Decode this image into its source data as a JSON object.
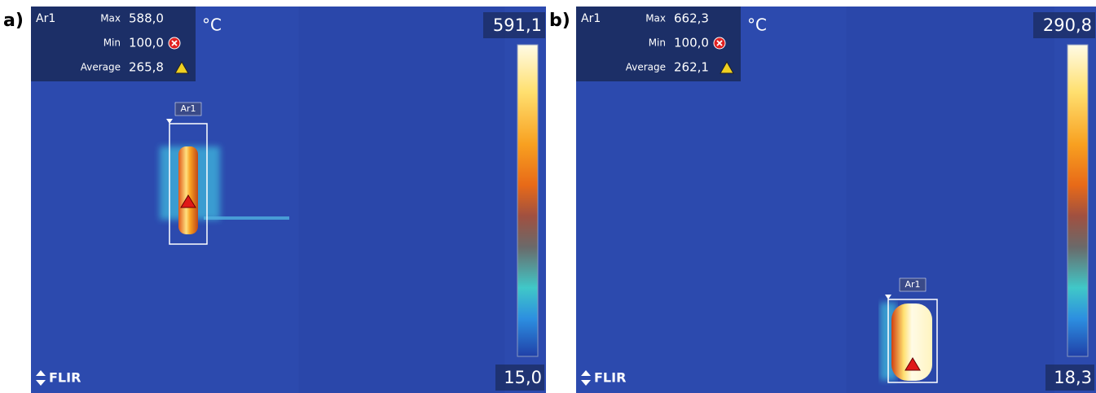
{
  "panels": [
    {
      "label": "a)",
      "area": "Ar1",
      "readings": [
        {
          "name": "Max",
          "value": "588,0"
        },
        {
          "name": "Min",
          "value": "100,0"
        },
        {
          "name": "Average",
          "value": "265,8"
        }
      ],
      "unit": "°C",
      "scale_max": "591,1",
      "scale_min": "15,0",
      "logo": "FLIR",
      "marker_label": "Ar1"
    },
    {
      "label": "b)",
      "area": "Ar1",
      "readings": [
        {
          "name": "Max",
          "value": "662,3"
        },
        {
          "name": "Min",
          "value": "100,0"
        },
        {
          "name": "Average",
          "value": "262,1"
        }
      ],
      "unit": "°C",
      "scale_max": "290,8",
      "scale_min": "18,3",
      "logo": "FLIR",
      "marker_label": "Ar1"
    }
  ]
}
